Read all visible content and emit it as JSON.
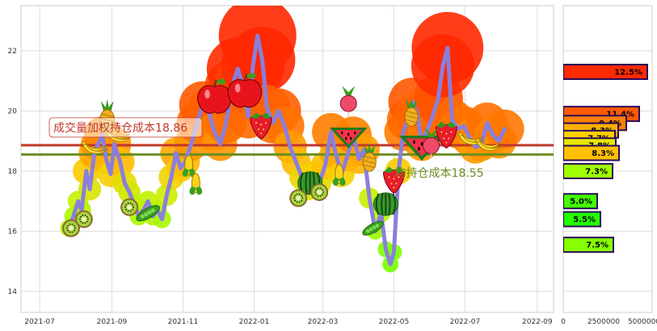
{
  "chart_data": [
    {
      "type": "line",
      "x_ticks": [
        "2021-07",
        "2021-09",
        "2021-11",
        "2022-01",
        "2022-03",
        "2022-05",
        "2022-07",
        "2022-09"
      ],
      "y_ticks": [
        14,
        16,
        18,
        20,
        22
      ],
      "xlim": [
        "2021-06-15",
        "2022-09-15"
      ],
      "ylim": [
        13.3,
        23.5
      ],
      "grid": true,
      "series": [
        {
          "color": "#8a7fdc",
          "x": [
            "2021-07-26",
            "2021-07-30",
            "2021-08-03",
            "2021-08-06",
            "2021-08-10",
            "2021-08-13",
            "2021-08-17",
            "2021-08-20",
            "2021-08-24",
            "2021-08-27",
            "2021-08-31",
            "2021-09-03",
            "2021-09-08",
            "2021-09-12",
            "2021-09-16",
            "2021-09-20",
            "2021-09-24",
            "2021-09-28",
            "2021-10-02",
            "2021-10-06",
            "2021-10-10",
            "2021-10-14",
            "2021-10-18",
            "2021-10-22",
            "2021-10-26",
            "2021-10-30",
            "2021-11-03",
            "2021-11-08",
            "2021-11-13",
            "2021-11-18",
            "2021-11-23",
            "2021-11-28",
            "2021-12-03",
            "2021-12-08",
            "2021-12-13",
            "2021-12-18",
            "2021-12-22",
            "2021-12-27",
            "2021-12-31",
            "2022-01-04",
            "2022-01-08",
            "2022-01-12",
            "2022-01-17",
            "2022-01-22",
            "2022-01-27",
            "2022-02-01",
            "2022-02-06",
            "2022-02-11",
            "2022-02-16",
            "2022-02-21",
            "2022-02-26",
            "2022-03-03",
            "2022-03-08",
            "2022-03-12",
            "2022-03-17",
            "2022-03-22",
            "2022-03-27",
            "2022-04-01",
            "2022-04-05",
            "2022-04-10",
            "2022-04-15",
            "2022-04-20",
            "2022-04-24",
            "2022-04-28",
            "2022-05-01",
            "2022-05-05",
            "2022-05-09",
            "2022-05-13",
            "2022-05-17",
            "2022-05-21",
            "2022-05-25",
            "2022-05-29",
            "2022-06-03",
            "2022-06-08",
            "2022-06-12",
            "2022-06-16",
            "2022-06-20",
            "2022-06-25",
            "2022-06-30",
            "2022-07-05",
            "2022-07-10",
            "2022-07-15",
            "2022-07-20",
            "2022-07-25",
            "2022-07-30",
            "2022-08-04"
          ],
          "values": [
            16.1,
            16.5,
            17.0,
            16.7,
            18.0,
            17.4,
            18.6,
            18.9,
            19.2,
            18.4,
            17.9,
            18.9,
            18.3,
            17.6,
            17.3,
            16.9,
            16.5,
            16.7,
            17.0,
            16.5,
            16.7,
            16.4,
            17.2,
            17.8,
            18.6,
            18.1,
            18.3,
            18.9,
            19.6,
            20.2,
            20.0,
            19.3,
            18.9,
            19.6,
            20.8,
            21.4,
            20.9,
            19.8,
            21.5,
            22.5,
            21.7,
            20.1,
            19.6,
            20.0,
            19.5,
            18.8,
            18.3,
            17.8,
            17.4,
            17.9,
            17.6,
            18.2,
            19.3,
            18.6,
            17.9,
            18.5,
            19.2,
            18.4,
            18.7,
            17.1,
            16.0,
            16.6,
            15.4,
            14.9,
            15.3,
            18.0,
            19.3,
            19.7,
            20.3,
            19.9,
            18.9,
            19.3,
            19.8,
            20.4,
            21.5,
            22.1,
            19.7,
            19.4,
            19.5,
            19.1,
            18.8,
            18.9,
            19.6,
            19.2,
            19.0,
            19.4
          ]
        },
        {
          "color": "#c0392b",
          "x": [
            "2021-06-15",
            "2022-09-15"
          ],
          "values": [
            18.86,
            18.86
          ]
        },
        {
          "color": "#6b8e23",
          "x": [
            "2021-06-15",
            "2022-09-15"
          ],
          "values": [
            18.55,
            18.55
          ]
        }
      ],
      "annotations": [
        {
          "text": "成交量加权持仓成本18.86",
          "color": "#c0392b",
          "x": "2021-07-10",
          "y": 19.45
        },
        {
          "text": "均持仓成本18.55",
          "color": "#6b8e23",
          "x": "2022-04-29",
          "y": 17.95
        }
      ]
    },
    {
      "type": "bar",
      "orientation": "horizontal",
      "x_ticks": [
        "0",
        "2500000",
        "5000000"
      ],
      "xlim": [
        0,
        5500000
      ],
      "ylim": [
        13.3,
        23.5
      ],
      "bars": [
        {
          "price": 21.3,
          "value": 5200000,
          "label": "12.5%",
          "color": "#ff2a00"
        },
        {
          "price": 19.9,
          "value": 4700000,
          "label": "11.4%",
          "color": "#ff5a00"
        },
        {
          "price": 19.6,
          "value": 3900000,
          "label": "9.4%",
          "color": "#ff8000"
        },
        {
          "price": 19.35,
          "value": 3400000,
          "label": "8.3%",
          "color": "#ffb000"
        },
        {
          "price": 19.1,
          "value": 3200000,
          "label": "7.7%",
          "color": "#ffd000"
        },
        {
          "price": 18.85,
          "value": 3250000,
          "label": "7.8%",
          "color": "#e8e800"
        },
        {
          "price": 18.6,
          "value": 3450000,
          "label": "8.3%",
          "color": "#ffc000"
        },
        {
          "price": 18.0,
          "value": 3050000,
          "label": "7.3%",
          "color": "#a0ff00"
        },
        {
          "price": 17.0,
          "value": 2100000,
          "label": "5.0%",
          "color": "#44ff00"
        },
        {
          "price": 16.4,
          "value": 2300000,
          "label": "5.5%",
          "color": "#22ff00"
        },
        {
          "price": 15.55,
          "value": 3100000,
          "label": "7.5%",
          "color": "#88ff00"
        }
      ]
    }
  ]
}
